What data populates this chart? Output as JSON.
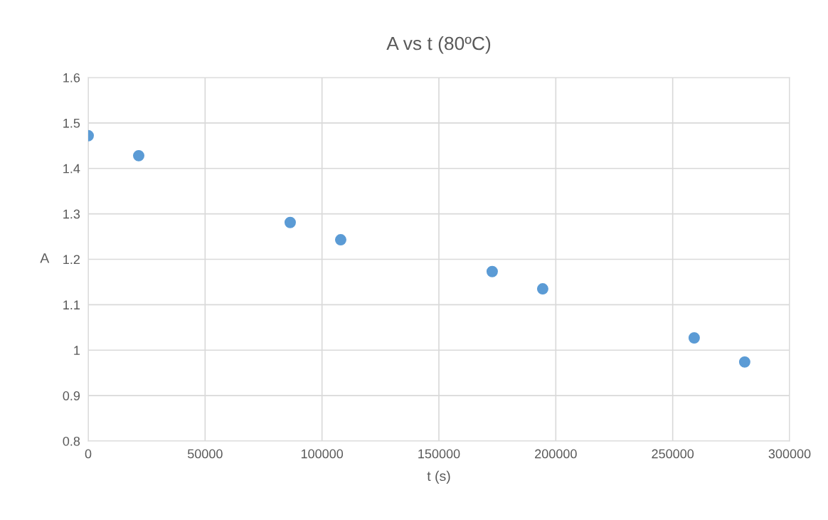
{
  "chart_data": {
    "type": "scatter",
    "title": "A vs t (80ºC)",
    "xlabel": "t (s)",
    "ylabel": "A",
    "x": [
      0,
      21600,
      86400,
      108000,
      172800,
      194400,
      259200,
      280800
    ],
    "series": [
      {
        "color": "#5b9bd5",
        "values": [
          1.472,
          1.428,
          1.281,
          1.243,
          1.173,
          1.135,
          1.027,
          0.974
        ]
      }
    ],
    "xlim": [
      0,
      300000
    ],
    "xticks": [
      0,
      50000,
      100000,
      150000,
      200000,
      250000,
      300000
    ],
    "ylim": [
      0.8,
      1.6
    ],
    "yticks": [
      0.8,
      0.9,
      1,
      1.1,
      1.2,
      1.3,
      1.4,
      1.5,
      1.6
    ],
    "grid": true,
    "marker": "circle"
  }
}
